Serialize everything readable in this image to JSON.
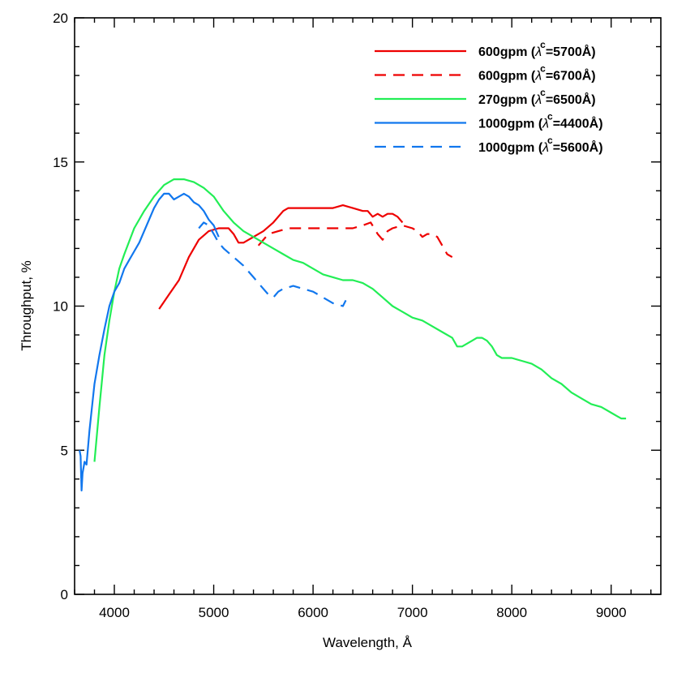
{
  "chart_data": {
    "type": "line",
    "title": "",
    "xlabel": "Wavelength, Å",
    "ylabel": "Throughput, %",
    "xlim": [
      3600,
      9500
    ],
    "ylim": [
      0,
      20
    ],
    "x_ticks": [
      4000,
      5000,
      6000,
      7000,
      8000,
      9000
    ],
    "x_tick_labels": [
      "4000",
      "5000",
      "6000",
      "7000",
      "8000",
      "9000"
    ],
    "y_ticks": [
      0,
      5,
      10,
      15,
      20
    ],
    "y_tick_labels": [
      "0",
      "5",
      "10",
      "15",
      "20"
    ],
    "grid": false,
    "legend_position": "top-right",
    "series": [
      {
        "name": "600gpm (λc=5700Å)",
        "legend_main": "600gpm (",
        "legend_lambda": "λ",
        "legend_sub": "c",
        "legend_rest": "=5700Å)",
        "color": "#ee0000",
        "dash": "solid",
        "x": [
          4450,
          4550,
          4650,
          4750,
          4850,
          4950,
          5050,
          5150,
          5200,
          5250,
          5300,
          5400,
          5500,
          5600,
          5700,
          5750,
          5800,
          5900,
          6000,
          6100,
          6200,
          6300,
          6400,
          6500,
          6550,
          6600,
          6650,
          6700,
          6750,
          6800,
          6850,
          6900
        ],
        "y": [
          9.9,
          10.4,
          10.9,
          11.7,
          12.3,
          12.6,
          12.7,
          12.7,
          12.5,
          12.2,
          12.2,
          12.4,
          12.6,
          12.9,
          13.3,
          13.4,
          13.4,
          13.4,
          13.4,
          13.4,
          13.4,
          13.5,
          13.4,
          13.3,
          13.3,
          13.1,
          13.2,
          13.1,
          13.2,
          13.2,
          13.1,
          12.9
        ]
      },
      {
        "name": "600gpm (λc=6700Å)",
        "legend_main": "600gpm (",
        "legend_lambda": "λ",
        "legend_sub": "c",
        "legend_rest": "=6700Å)",
        "color": "#ee0000",
        "dash": "dashed",
        "x": [
          5450,
          5550,
          5650,
          5750,
          5850,
          6000,
          6200,
          6400,
          6500,
          6580,
          6650,
          6700,
          6750,
          6800,
          6900,
          7000,
          7050,
          7100,
          7150,
          7200,
          7250,
          7300,
          7350,
          7400
        ],
        "y": [
          12.1,
          12.5,
          12.6,
          12.7,
          12.7,
          12.7,
          12.7,
          12.7,
          12.8,
          12.9,
          12.5,
          12.3,
          12.6,
          12.7,
          12.8,
          12.7,
          12.6,
          12.4,
          12.5,
          12.5,
          12.4,
          12.1,
          11.8,
          11.7
        ]
      },
      {
        "name": "270gpm (λc=6500Å)",
        "legend_main": "270gpm (",
        "legend_lambda": "λ",
        "legend_sub": "c",
        "legend_rest": "=6500Å)",
        "color": "#22ee55",
        "dash": "solid",
        "x": [
          3800,
          3850,
          3900,
          3950,
          4000,
          4050,
          4100,
          4200,
          4300,
          4400,
          4500,
          4600,
          4700,
          4800,
          4900,
          5000,
          5100,
          5200,
          5300,
          5400,
          5500,
          5600,
          5700,
          5800,
          5900,
          6000,
          6100,
          6200,
          6300,
          6400,
          6500,
          6600,
          6700,
          6800,
          6900,
          7000,
          7100,
          7200,
          7300,
          7400,
          7450,
          7500,
          7600,
          7650,
          7700,
          7750,
          7800,
          7850,
          7900,
          8000,
          8100,
          8200,
          8300,
          8400,
          8500,
          8600,
          8700,
          8800,
          8900,
          9000,
          9100,
          9150
        ],
        "y": [
          4.6,
          6.5,
          8.3,
          9.5,
          10.5,
          11.3,
          11.8,
          12.7,
          13.3,
          13.8,
          14.2,
          14.4,
          14.4,
          14.3,
          14.1,
          13.8,
          13.3,
          12.9,
          12.6,
          12.4,
          12.2,
          12.0,
          11.8,
          11.6,
          11.5,
          11.3,
          11.1,
          11.0,
          10.9,
          10.9,
          10.8,
          10.6,
          10.3,
          10.0,
          9.8,
          9.6,
          9.5,
          9.3,
          9.1,
          8.9,
          8.6,
          8.6,
          8.8,
          8.9,
          8.9,
          8.8,
          8.6,
          8.3,
          8.2,
          8.2,
          8.1,
          8.0,
          7.8,
          7.5,
          7.3,
          7.0,
          6.8,
          6.6,
          6.5,
          6.3,
          6.1,
          6.1
        ]
      },
      {
        "name": "1000gpm (λc=4400Å)",
        "legend_main": "1000gpm (",
        "legend_lambda": "λ",
        "legend_sub": "c",
        "legend_rest": "=4400Å)",
        "color": "#1177ee",
        "dash": "solid",
        "x": [
          3650,
          3660,
          3670,
          3680,
          3700,
          3720,
          3750,
          3800,
          3850,
          3900,
          3950,
          4000,
          4050,
          4100,
          4150,
          4200,
          4250,
          4300,
          4350,
          4400,
          4450,
          4500,
          4550,
          4600,
          4650,
          4700,
          4750,
          4800,
          4850,
          4900,
          4950,
          5000,
          5050
        ],
        "y": [
          5.0,
          4.8,
          3.6,
          4.2,
          4.6,
          4.5,
          5.7,
          7.3,
          8.3,
          9.2,
          10.0,
          10.5,
          10.8,
          11.3,
          11.6,
          11.9,
          12.2,
          12.6,
          13.0,
          13.4,
          13.7,
          13.9,
          13.9,
          13.7,
          13.8,
          13.9,
          13.8,
          13.6,
          13.5,
          13.3,
          13.0,
          12.8,
          12.4
        ]
      },
      {
        "name": "1000gpm (λc=5600Å)",
        "legend_main": "1000gpm (",
        "legend_lambda": "λ",
        "legend_sub": "c",
        "legend_rest": "=5600Å)",
        "color": "#1177ee",
        "dash": "dashed",
        "x": [
          4850,
          4900,
          4950,
          5000,
          5050,
          5100,
          5200,
          5300,
          5400,
          5450,
          5500,
          5550,
          5600,
          5650,
          5700,
          5800,
          5900,
          6000,
          6100,
          6200,
          6300,
          6330
        ],
        "y": [
          12.7,
          12.9,
          12.8,
          12.5,
          12.2,
          12.0,
          11.7,
          11.4,
          11.0,
          10.8,
          10.6,
          10.4,
          10.3,
          10.5,
          10.6,
          10.7,
          10.6,
          10.5,
          10.3,
          10.1,
          10.0,
          10.2
        ]
      }
    ]
  }
}
